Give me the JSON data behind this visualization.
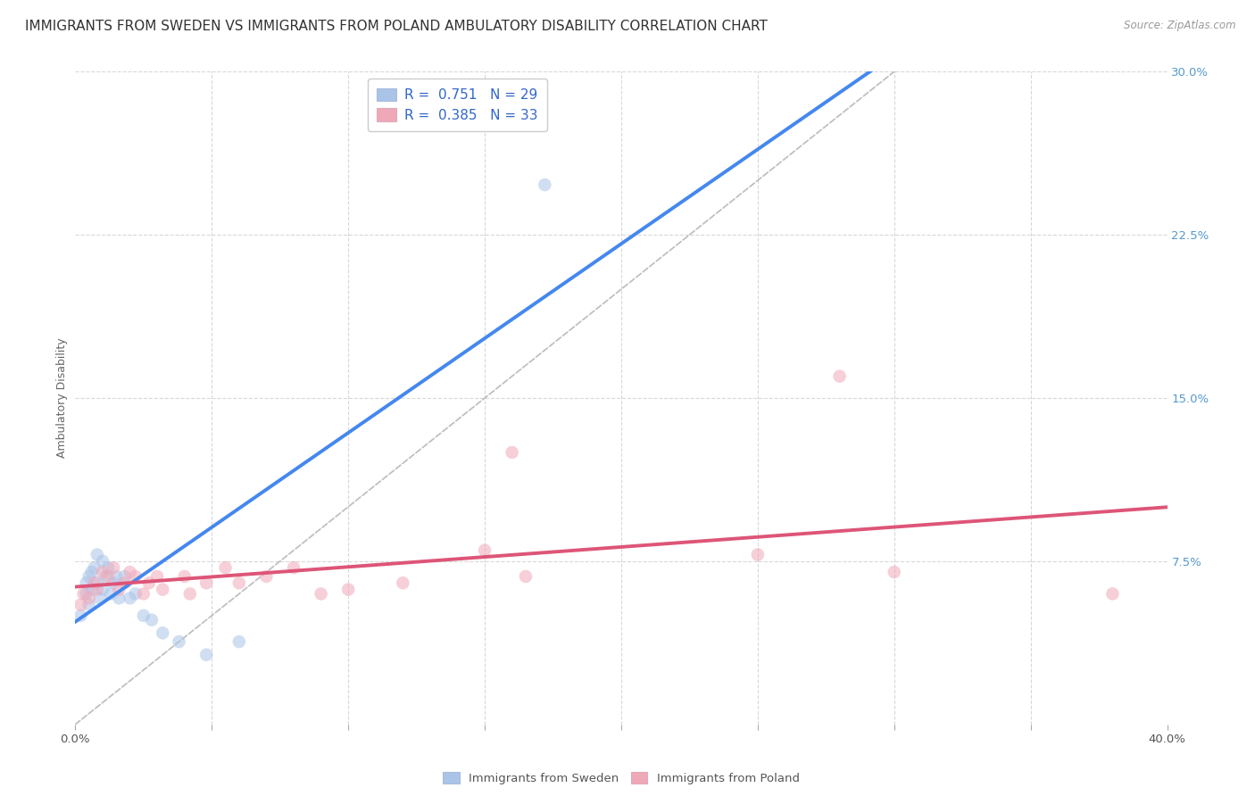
{
  "title": "IMMIGRANTS FROM SWEDEN VS IMMIGRANTS FROM POLAND AMBULATORY DISABILITY CORRELATION CHART",
  "source": "Source: ZipAtlas.com",
  "ylabel": "Ambulatory Disability",
  "xlim": [
    0.0,
    0.4
  ],
  "ylim": [
    -0.005,
    0.32
  ],
  "plot_ylim": [
    0.0,
    0.3
  ],
  "xticks": [
    0.0,
    0.05,
    0.1,
    0.15,
    0.2,
    0.25,
    0.3,
    0.35,
    0.4
  ],
  "yticks_right": [
    0.0,
    0.075,
    0.15,
    0.225,
    0.3
  ],
  "ytick_labels_right": [
    "",
    "7.5%",
    "15.0%",
    "22.5%",
    "30.0%"
  ],
  "xtick_labels": [
    "0.0%",
    "",
    "",
    "",
    "",
    "",
    "",
    "",
    "40.0%"
  ],
  "background_color": "#ffffff",
  "grid_color": "#d8d8d8",
  "sweden_color": "#aac4e8",
  "poland_color": "#f0a8b8",
  "sweden_edge_color": "#88aadd",
  "poland_edge_color": "#dd8899",
  "sweden_line_color": "#4488ee",
  "poland_line_color": "#dd5577",
  "dashed_line_color": "#c0c0c0",
  "legend_label_color": "#3366cc",
  "right_tick_color": "#5599cc",
  "sweden_x": [
    0.002,
    0.004,
    0.004,
    0.005,
    0.005,
    0.006,
    0.006,
    0.007,
    0.008,
    0.008,
    0.009,
    0.01,
    0.01,
    0.011,
    0.012,
    0.013,
    0.014,
    0.015,
    0.016,
    0.018,
    0.02,
    0.022,
    0.025,
    0.028,
    0.032,
    0.038,
    0.048,
    0.06,
    0.172
  ],
  "sweden_y": [
    0.05,
    0.06,
    0.065,
    0.055,
    0.068,
    0.062,
    0.07,
    0.072,
    0.065,
    0.078,
    0.058,
    0.062,
    0.075,
    0.068,
    0.072,
    0.06,
    0.065,
    0.068,
    0.058,
    0.068,
    0.058,
    0.06,
    0.05,
    0.048,
    0.042,
    0.038,
    0.032,
    0.038,
    0.248
  ],
  "poland_x": [
    0.002,
    0.003,
    0.005,
    0.007,
    0.008,
    0.01,
    0.012,
    0.014,
    0.016,
    0.018,
    0.02,
    0.022,
    0.025,
    0.027,
    0.03,
    0.032,
    0.04,
    0.042,
    0.048,
    0.055,
    0.06,
    0.07,
    0.08,
    0.09,
    0.1,
    0.12,
    0.15,
    0.16,
    0.165,
    0.25,
    0.28,
    0.3,
    0.38
  ],
  "poland_y": [
    0.055,
    0.06,
    0.058,
    0.065,
    0.062,
    0.07,
    0.068,
    0.072,
    0.062,
    0.065,
    0.07,
    0.068,
    0.06,
    0.065,
    0.068,
    0.062,
    0.068,
    0.06,
    0.065,
    0.072,
    0.065,
    0.068,
    0.072,
    0.06,
    0.062,
    0.065,
    0.08,
    0.125,
    0.068,
    0.078,
    0.16,
    0.07,
    0.06
  ],
  "marker_size": 110,
  "marker_alpha": 0.55,
  "line_width": 2.8,
  "title_fontsize": 11,
  "axis_label_fontsize": 9,
  "tick_fontsize": 9.5,
  "legend_fontsize": 11
}
